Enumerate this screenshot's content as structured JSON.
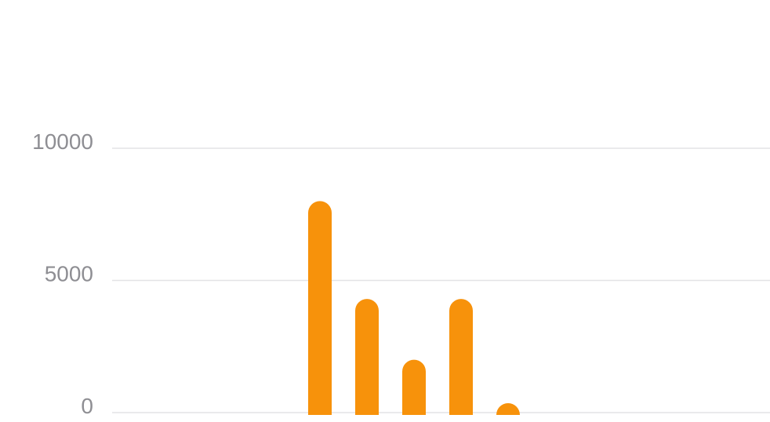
{
  "chart_data": {
    "type": "bar",
    "title": "",
    "xlabel": "",
    "ylabel": "",
    "ylim": [
      0,
      10000
    ],
    "y_ticks": [
      "0",
      "5000",
      "10000"
    ],
    "grid": true,
    "legend": "none",
    "categories": [
      "",
      "",
      "",
      "",
      "",
      "",
      "",
      "",
      "",
      "",
      "",
      "",
      "",
      ""
    ],
    "values": [
      0,
      0,
      0,
      0,
      8000,
      4300,
      2000,
      4300,
      300,
      0,
      0,
      0,
      0,
      0
    ],
    "colors": {
      "bar": "#f7920b",
      "grid": "#e3e3e6",
      "tick_text": "#8e8e93"
    }
  }
}
